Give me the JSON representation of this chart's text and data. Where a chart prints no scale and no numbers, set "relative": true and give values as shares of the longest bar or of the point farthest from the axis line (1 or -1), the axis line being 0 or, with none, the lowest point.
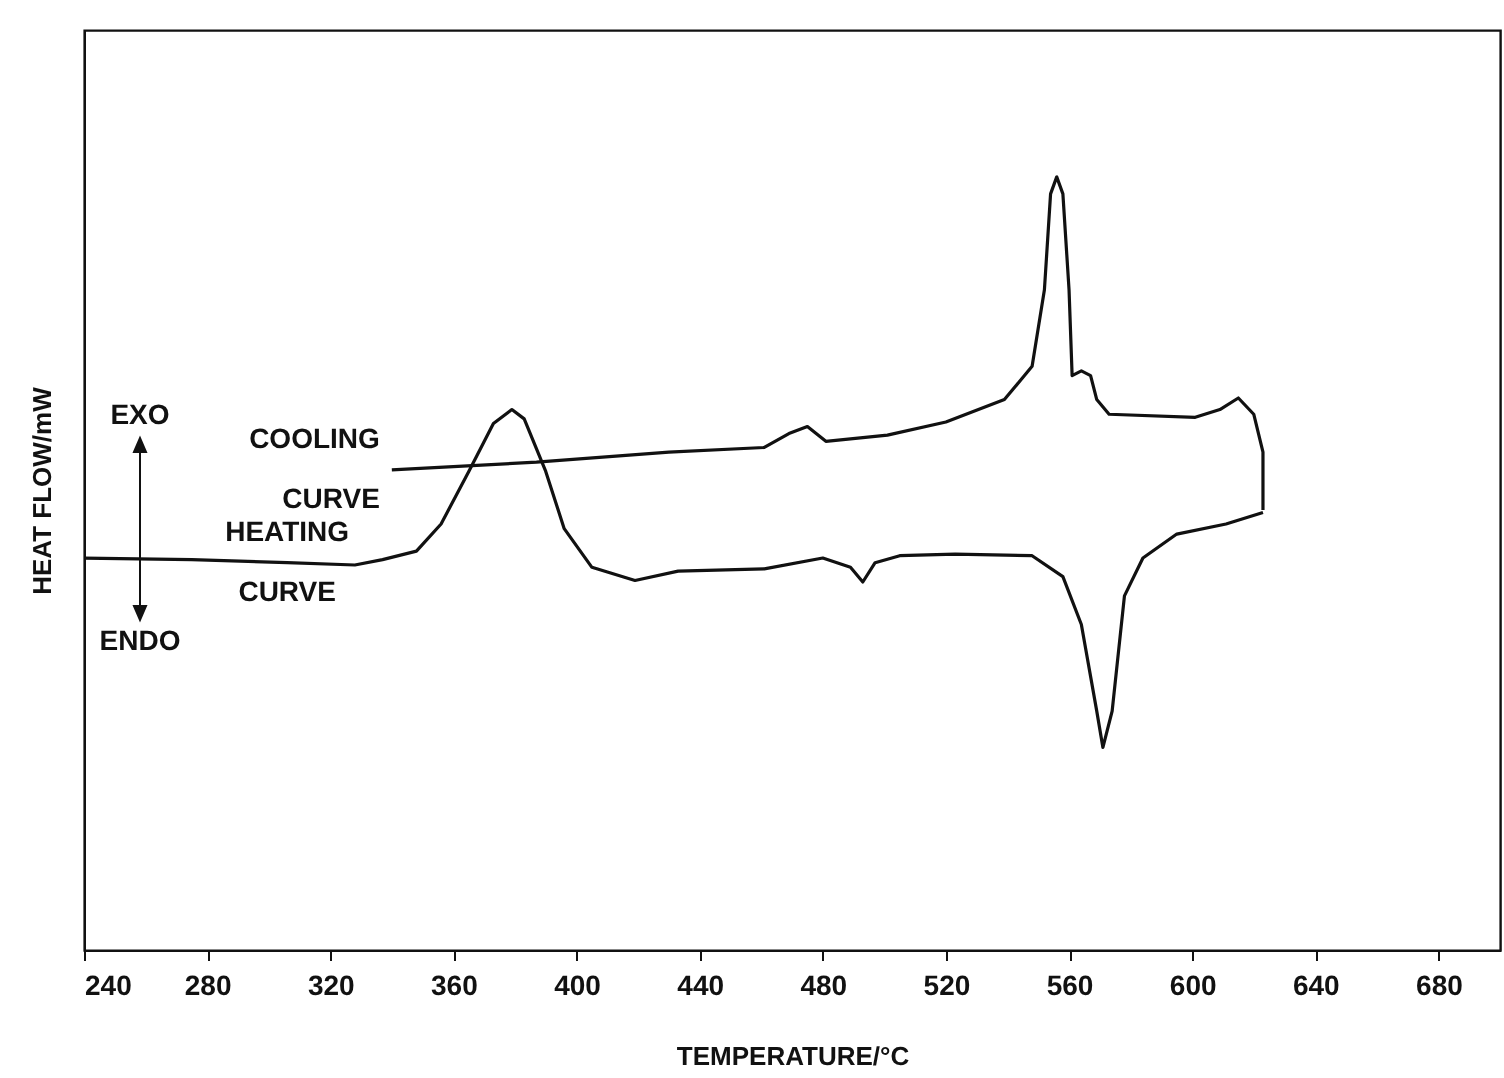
{
  "chart_data": {
    "type": "line",
    "relative": true,
    "xlabel": "TEMPERATURE/°C",
    "ylabel": "HEAT FLOW/mW",
    "xlim": [
      240,
      700
    ],
    "xticks": [
      240,
      280,
      320,
      360,
      400,
      440,
      480,
      520,
      560,
      600,
      640,
      680
    ],
    "grid": false,
    "annotations": [
      "EXO",
      "ENDO"
    ],
    "series": [
      {
        "name": "COOLING CURVE",
        "color": "#111111",
        "x": [
          623,
          623,
          620,
          615,
          609,
          601,
          573,
          569,
          567,
          564,
          561,
          560,
          558,
          556,
          554,
          552,
          548,
          539,
          520,
          501,
          481,
          475,
          469,
          461,
          430,
          387,
          340
        ],
        "values": [
          0.569,
          0.644,
          0.693,
          0.714,
          0.699,
          0.689,
          0.693,
          0.712,
          0.743,
          0.749,
          0.743,
          0.854,
          0.978,
          1,
          0.978,
          0.854,
          0.755,
          0.712,
          0.683,
          0.666,
          0.658,
          0.677,
          0.668,
          0.65,
          0.644,
          0.631,
          0.621
        ]
      },
      {
        "name": "HEATING CURVE",
        "color": "#111111",
        "x": [
          240,
          275,
          306,
          328,
          337,
          348,
          356,
          365,
          373,
          379,
          383,
          390,
          396,
          405,
          419,
          433,
          461,
          480,
          489,
          493,
          497,
          505,
          523,
          548,
          558,
          564,
          569,
          571,
          574,
          578,
          584,
          595,
          611,
          623
        ],
        "values": [
          0.507,
          0.505,
          0.501,
          0.498,
          0.505,
          0.516,
          0.551,
          0.619,
          0.681,
          0.699,
          0.687,
          0.619,
          0.545,
          0.495,
          0.478,
          0.49,
          0.493,
          0.507,
          0.495,
          0.476,
          0.501,
          0.51,
          0.512,
          0.51,
          0.483,
          0.421,
          0.309,
          0.262,
          0.309,
          0.458,
          0.507,
          0.538,
          0.551,
          0.566
        ]
      }
    ]
  }
}
